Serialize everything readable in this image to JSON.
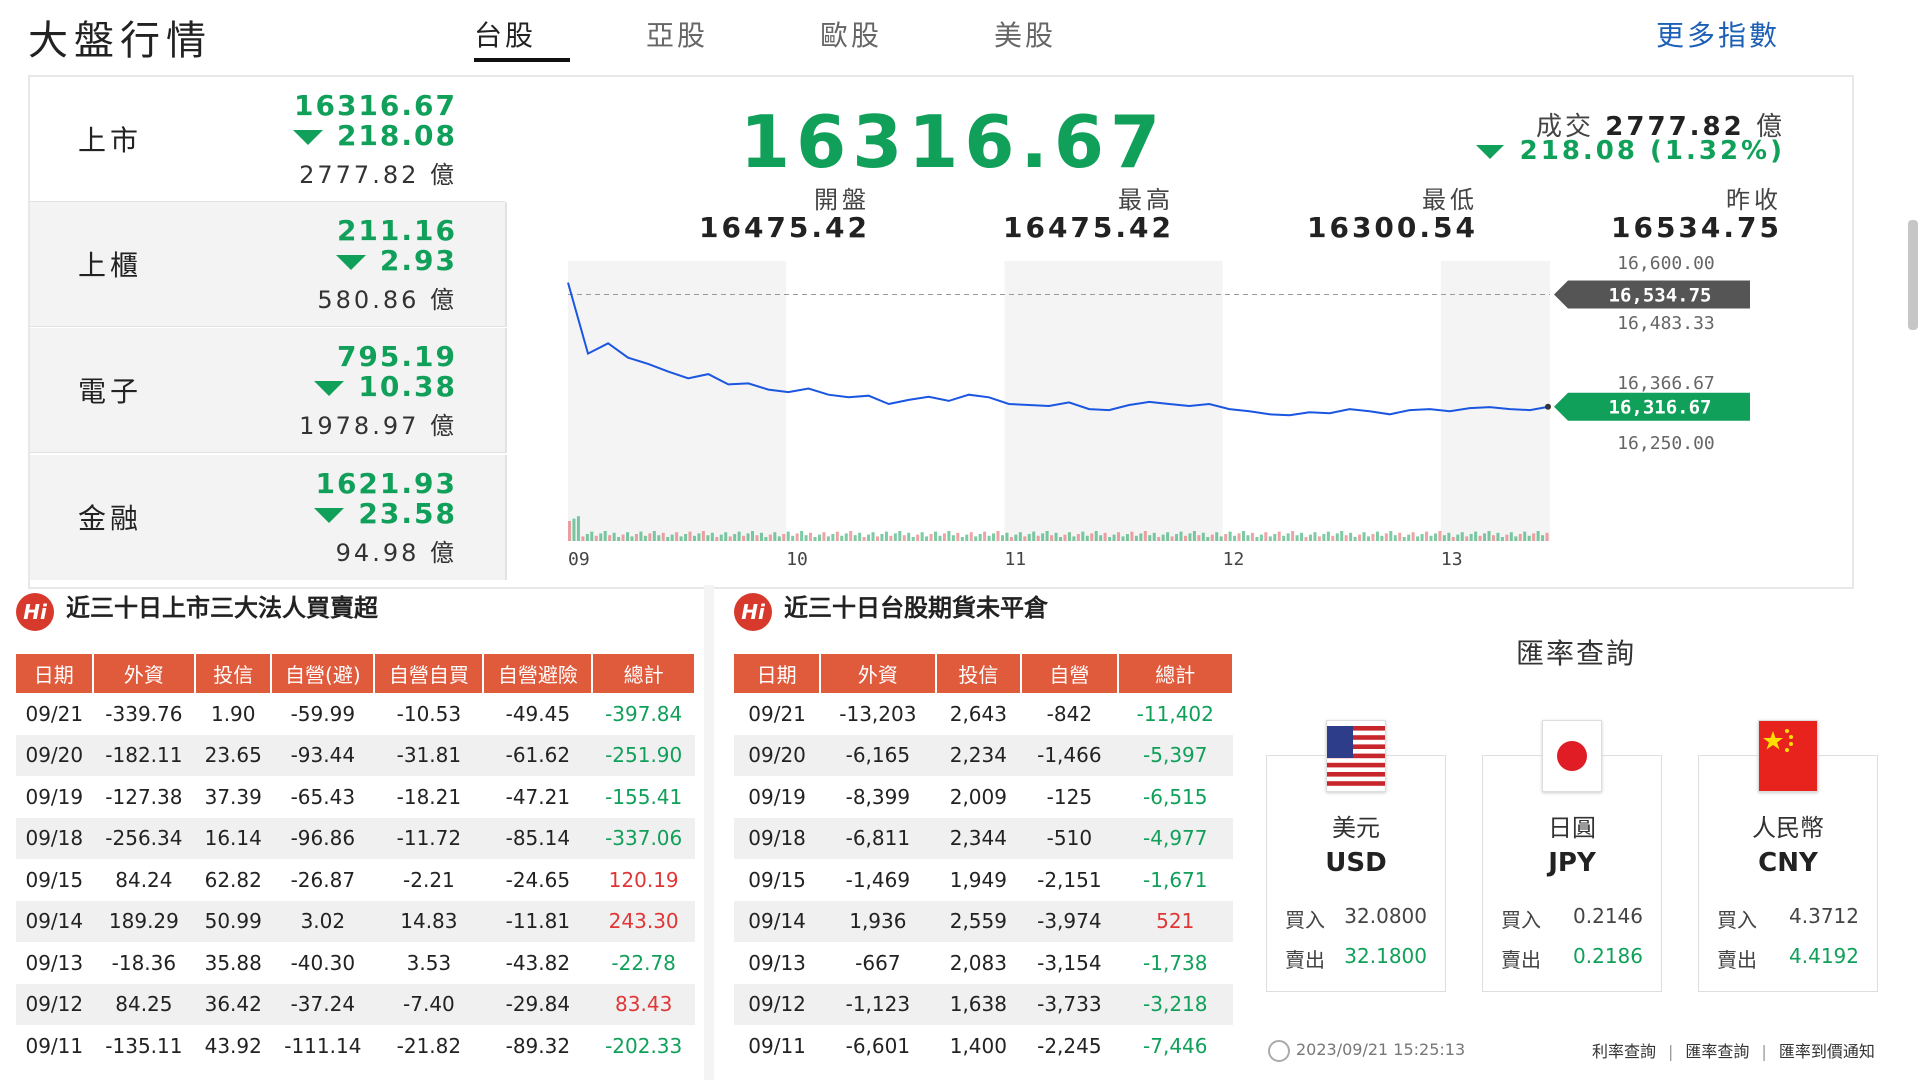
{
  "header": {
    "title": "大盤行情",
    "tabs": [
      "台股",
      "亞股",
      "歐股",
      "美股"
    ],
    "more": "更多指數"
  },
  "indices": [
    {
      "name": "上市",
      "value": "16316.67",
      "change": "218.08",
      "volume": "2777.82 億"
    },
    {
      "name": "上櫃",
      "value": "211.16",
      "change": "2.93",
      "volume": "580.86 億"
    },
    {
      "name": "電子",
      "value": "795.19",
      "change": "10.38",
      "volume": "1978.97 億"
    },
    {
      "name": "金融",
      "value": "1621.93",
      "change": "23.58",
      "volume": "94.98 億"
    }
  ],
  "main": {
    "value": "16316.67",
    "volume_label": "成交",
    "volume_value": "2777.82",
    "volume_unit": "億",
    "change": "218.08 (1.32%)",
    "stats": [
      {
        "label": "開盤",
        "value": "16475.42"
      },
      {
        "label": "最高",
        "value": "16475.42"
      },
      {
        "label": "最低",
        "value": "16300.54"
      },
      {
        "label": "昨收",
        "value": "16534.75"
      }
    ]
  },
  "chart_data": {
    "type": "line",
    "x_ticks": [
      "09",
      "10",
      "11",
      "12",
      "13"
    ],
    "y_ticks": [
      "16,600.00",
      "16,483.33",
      "16,366.67",
      "16,250.00"
    ],
    "y_values": [
      16600,
      16483.33,
      16366.67,
      16250
    ],
    "ylim": [
      16250,
      16600
    ],
    "prev_close": 16534.75,
    "prev_close_label": "16,534.75",
    "last": 16316.67,
    "last_label": "16,316.67",
    "series": [
      {
        "values": [
          16558,
          16420,
          16440,
          16412,
          16400,
          16385,
          16372,
          16380,
          16360,
          16362,
          16350,
          16345,
          16352,
          16340,
          16335,
          16338,
          16322,
          16330,
          16336,
          16328,
          16340,
          16335,
          16322,
          16320,
          16318,
          16325,
          16312,
          16310,
          16320,
          16326,
          16322,
          16318,
          16322,
          16312,
          16308,
          16302,
          16300,
          16306,
          16304,
          16312,
          16308,
          16302,
          16310,
          16312,
          16308,
          16314,
          16316,
          16312,
          16310,
          16317
        ]
      }
    ],
    "line_color": "#1a56e0",
    "up_color": "#11a05a",
    "down_color": "#e05a5a"
  },
  "institutional": {
    "title": "近三十日上市三大法人買賣超",
    "headers": [
      "日期",
      "外資",
      "投信",
      "自營(避)",
      "自營自買",
      "自營避險",
      "總計"
    ],
    "rows": [
      [
        "09/21",
        "-339.76",
        "1.90",
        "-59.99",
        "-10.53",
        "-49.45",
        "-397.84"
      ],
      [
        "09/20",
        "-182.11",
        "23.65",
        "-93.44",
        "-31.81",
        "-61.62",
        "-251.90"
      ],
      [
        "09/19",
        "-127.38",
        "37.39",
        "-65.43",
        "-18.21",
        "-47.21",
        "-155.41"
      ],
      [
        "09/18",
        "-256.34",
        "16.14",
        "-96.86",
        "-11.72",
        "-85.14",
        "-337.06"
      ],
      [
        "09/15",
        "84.24",
        "62.82",
        "-26.87",
        "-2.21",
        "-24.65",
        "120.19"
      ],
      [
        "09/14",
        "189.29",
        "50.99",
        "3.02",
        "14.83",
        "-11.81",
        "243.30"
      ],
      [
        "09/13",
        "-18.36",
        "35.88",
        "-40.30",
        "3.53",
        "-43.82",
        "-22.78"
      ],
      [
        "09/12",
        "84.25",
        "36.42",
        "-37.24",
        "-7.40",
        "-29.84",
        "83.43"
      ],
      [
        "09/11",
        "-135.11",
        "43.92",
        "-111.14",
        "-21.82",
        "-89.32",
        "-202.33"
      ]
    ]
  },
  "futures": {
    "title": "近三十日台股期貨未平倉",
    "headers": [
      "日期",
      "外資",
      "投信",
      "自營",
      "總計"
    ],
    "rows": [
      [
        "09/21",
        "-13,203",
        "2,643",
        "-842",
        "-11,402"
      ],
      [
        "09/20",
        "-6,165",
        "2,234",
        "-1,466",
        "-5,397"
      ],
      [
        "09/19",
        "-8,399",
        "2,009",
        "-125",
        "-6,515"
      ],
      [
        "09/18",
        "-6,811",
        "2,344",
        "-510",
        "-4,977"
      ],
      [
        "09/15",
        "-1,469",
        "1,949",
        "-2,151",
        "-1,671"
      ],
      [
        "09/14",
        "1,936",
        "2,559",
        "-3,974",
        "521"
      ],
      [
        "09/13",
        "-667",
        "2,083",
        "-3,154",
        "-1,738"
      ],
      [
        "09/12",
        "-1,123",
        "1,638",
        "-3,733",
        "-3,218"
      ],
      [
        "09/11",
        "-6,601",
        "1,400",
        "-2,245",
        "-7,446"
      ]
    ]
  },
  "fx": {
    "title": "匯率查詢",
    "buy_label": "買入",
    "sell_label": "賣出",
    "currencies": [
      {
        "name": "美元",
        "code": "USD",
        "buy": "32.0800",
        "sell": "32.1800",
        "flag": "us-flag"
      },
      {
        "name": "日圓",
        "code": "JPY",
        "buy": "0.2146",
        "sell": "0.2186",
        "flag": "jp-flag"
      },
      {
        "name": "人民幣",
        "code": "CNY",
        "buy": "4.3712",
        "sell": "4.4192",
        "flag": "cn-flag"
      }
    ],
    "timestamp": "2023/09/21 15:25:13",
    "links": [
      "利率查詢",
      "匯率查詢",
      "匯率到價通知"
    ]
  }
}
